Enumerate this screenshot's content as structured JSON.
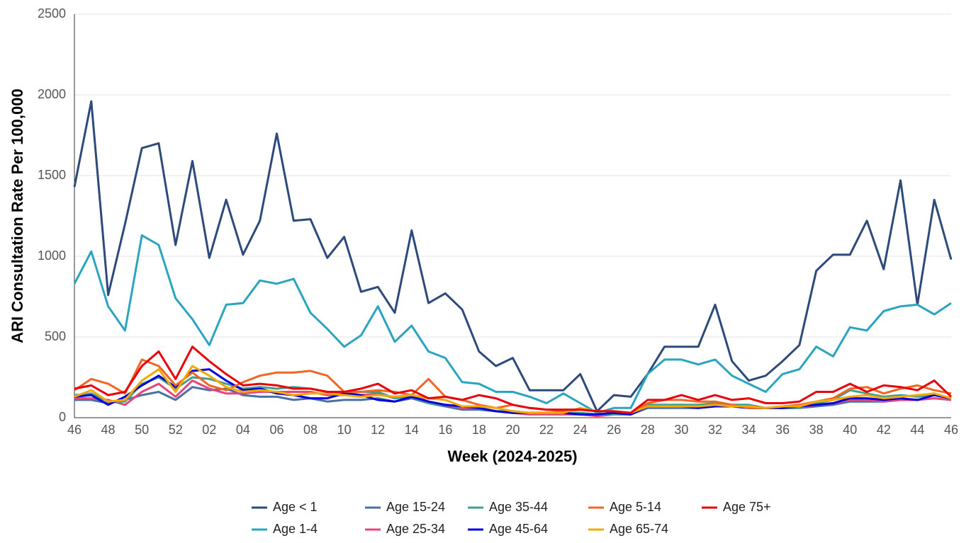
{
  "chart_data": {
    "type": "line",
    "x_label": "Week (2024-2025)",
    "y_label": "ARI Consultation Rate Per 100,000",
    "categories": [
      "46",
      null,
      "48",
      null,
      "50",
      null,
      "52",
      null,
      "02",
      null,
      "04",
      null,
      "06",
      null,
      "08",
      null,
      "10",
      null,
      "12",
      null,
      "14",
      null,
      "16",
      null,
      "18",
      null,
      "20",
      null,
      "22",
      null,
      "24",
      null,
      "26",
      null,
      "28",
      null,
      "30",
      null,
      "32",
      null,
      "34",
      null,
      "36",
      null,
      "38",
      null,
      "40",
      null,
      "42",
      null,
      "44",
      null,
      "46"
    ],
    "ylim": [
      0,
      2500
    ],
    "yticks": [
      0,
      500,
      1000,
      1500,
      2000,
      2500
    ],
    "grid": true,
    "legend": "bottom",
    "series": [
      {
        "name": "Age < 1",
        "color": "#2e4a7a",
        "values": [
          1430,
          1960,
          760,
          1200,
          1670,
          1700,
          1070,
          1590,
          990,
          1350,
          1010,
          1220,
          1760,
          1220,
          1230,
          990,
          1120,
          780,
          810,
          650,
          1160,
          710,
          770,
          670,
          410,
          320,
          370,
          170,
          170,
          170,
          270,
          40,
          140,
          130,
          270,
          440,
          440,
          440,
          700,
          350,
          230,
          260,
          350,
          450,
          910,
          1010,
          1010,
          1220,
          920,
          1470,
          700,
          1350,
          980
        ]
      },
      {
        "name": "Age 1-4",
        "color": "#2aa4c0",
        "values": [
          830,
          1030,
          690,
          540,
          1130,
          1070,
          740,
          610,
          450,
          700,
          710,
          850,
          830,
          860,
          650,
          550,
          440,
          510,
          690,
          470,
          570,
          410,
          370,
          220,
          210,
          160,
          160,
          130,
          90,
          150,
          90,
          30,
          60,
          60,
          270,
          360,
          360,
          330,
          360,
          260,
          210,
          160,
          270,
          300,
          440,
          380,
          560,
          540,
          660,
          690,
          700,
          640,
          710
        ]
      },
      {
        "name": "Age 15-24",
        "color": "#4a6fa5",
        "values": [
          110,
          110,
          90,
          110,
          140,
          160,
          110,
          190,
          170,
          180,
          140,
          130,
          130,
          110,
          120,
          100,
          110,
          110,
          120,
          100,
          120,
          90,
          70,
          50,
          50,
          40,
          40,
          30,
          30,
          30,
          30,
          20,
          30,
          20,
          60,
          60,
          60,
          60,
          70,
          70,
          60,
          60,
          60,
          60,
          70,
          80,
          100,
          100,
          100,
          110,
          110,
          120,
          110
        ]
      },
      {
        "name": "Age 25-34",
        "color": "#e8457d",
        "values": [
          120,
          120,
          110,
          80,
          160,
          210,
          130,
          230,
          180,
          150,
          150,
          160,
          160,
          160,
          160,
          140,
          140,
          140,
          150,
          120,
          140,
          100,
          80,
          60,
          60,
          40,
          30,
          20,
          20,
          20,
          20,
          10,
          20,
          20,
          70,
          70,
          80,
          70,
          80,
          70,
          70,
          60,
          60,
          60,
          80,
          90,
          110,
          110,
          100,
          110,
          110,
          120,
          110
        ]
      },
      {
        "name": "Age 35-44",
        "color": "#40a090",
        "values": [
          140,
          150,
          100,
          100,
          210,
          250,
          180,
          250,
          240,
          210,
          180,
          190,
          180,
          190,
          180,
          160,
          150,
          160,
          160,
          120,
          130,
          90,
          80,
          70,
          60,
          40,
          40,
          30,
          30,
          30,
          30,
          20,
          20,
          20,
          80,
          80,
          80,
          80,
          90,
          80,
          80,
          60,
          60,
          60,
          90,
          110,
          170,
          150,
          130,
          140,
          130,
          140,
          120
        ]
      },
      {
        "name": "Age 45-64",
        "color": "#0000e0",
        "values": [
          130,
          140,
          80,
          130,
          200,
          260,
          190,
          290,
          300,
          230,
          170,
          180,
          150,
          140,
          120,
          120,
          150,
          140,
          110,
          100,
          130,
          100,
          80,
          70,
          60,
          40,
          30,
          30,
          30,
          30,
          20,
          20,
          30,
          20,
          70,
          70,
          70,
          60,
          70,
          70,
          60,
          60,
          60,
          70,
          80,
          90,
          120,
          120,
          110,
          120,
          110,
          140,
          120
        ]
      },
      {
        "name": "Age 5-14",
        "color": "#f26522",
        "values": [
          170,
          240,
          210,
          150,
          360,
          320,
          200,
          280,
          200,
          170,
          220,
          260,
          280,
          280,
          290,
          260,
          160,
          160,
          170,
          160,
          140,
          240,
          130,
          110,
          80,
          60,
          80,
          60,
          50,
          40,
          50,
          40,
          40,
          30,
          90,
          110,
          110,
          100,
          100,
          80,
          60,
          60,
          70,
          80,
          100,
          120,
          180,
          190,
          150,
          180,
          200,
          170,
          150
        ]
      },
      {
        "name": "Age 65-74",
        "color": "#f5a800",
        "values": [
          130,
          170,
          100,
          110,
          230,
          300,
          160,
          320,
          260,
          190,
          160,
          170,
          160,
          140,
          150,
          150,
          140,
          130,
          140,
          130,
          140,
          120,
          110,
          70,
          70,
          60,
          40,
          30,
          30,
          30,
          60,
          40,
          40,
          30,
          70,
          70,
          70,
          70,
          80,
          70,
          70,
          60,
          70,
          70,
          100,
          110,
          130,
          140,
          120,
          130,
          140,
          150,
          120
        ]
      },
      {
        "name": "Age 75+",
        "color": "#e8000b",
        "values": [
          180,
          200,
          140,
          160,
          320,
          410,
          240,
          440,
          350,
          270,
          200,
          210,
          200,
          180,
          180,
          160,
          160,
          180,
          210,
          150,
          170,
          120,
          130,
          110,
          140,
          120,
          80,
          60,
          50,
          50,
          50,
          40,
          40,
          30,
          110,
          110,
          140,
          110,
          140,
          110,
          120,
          90,
          90,
          100,
          160,
          160,
          210,
          160,
          200,
          190,
          170,
          230,
          130
        ]
      }
    ]
  }
}
